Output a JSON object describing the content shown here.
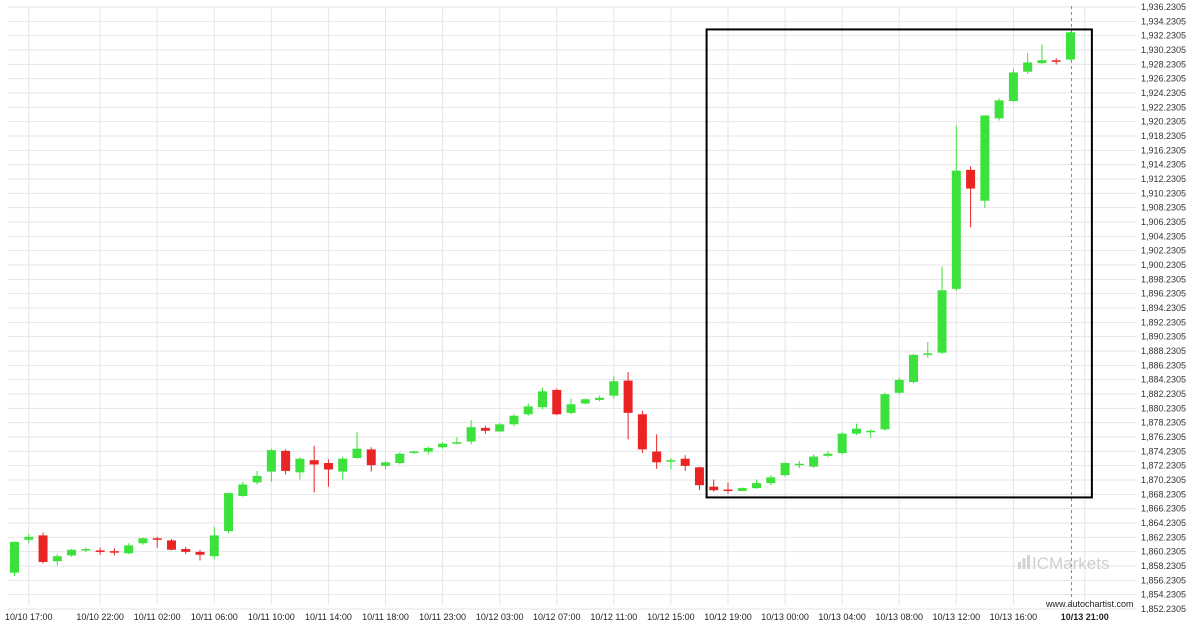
{
  "chart_data": {
    "type": "candlestick",
    "ylim": [
      1852.2305,
      1936.2305
    ],
    "y_ticks": [
      "1,852.2305",
      "1,854.2305",
      "1,856.2305",
      "1,858.2305",
      "1,860.2305",
      "1,862.2305",
      "1,864.2305",
      "1,866.2305",
      "1,868.2305",
      "1,870.2305",
      "1,872.2305",
      "1,874.2305",
      "1,876.2305",
      "1,878.2305",
      "1,880.2305",
      "1,882.2305",
      "1,884.2305",
      "1,886.2305",
      "1,888.2305",
      "1,890.2305",
      "1,892.2305",
      "1,894.2305",
      "1,896.2305",
      "1,898.2305",
      "1,900.2305",
      "1,902.2305",
      "1,904.2305",
      "1,906.2305",
      "1,908.2305",
      "1,910.2305",
      "1,912.2305",
      "1,914.2305",
      "1,916.2305",
      "1,918.2305",
      "1,920.2305",
      "1,922.2305",
      "1,924.2305",
      "1,926.2305",
      "1,928.2305",
      "1,930.2305",
      "1,932.2305",
      "1,934.2305",
      "1,936.2305"
    ],
    "x_ticks": [
      {
        "label": "10/10 17:00",
        "index": 1
      },
      {
        "label": "10/10 22:00",
        "index": 6
      },
      {
        "label": "10/11 02:00",
        "index": 10
      },
      {
        "label": "10/11 06:00",
        "index": 14
      },
      {
        "label": "10/11 10:00",
        "index": 18
      },
      {
        "label": "10/11 14:00",
        "index": 22
      },
      {
        "label": "10/11 18:00",
        "index": 26
      },
      {
        "label": "10/11 23:00",
        "index": 30
      },
      {
        "label": "10/12 03:00",
        "index": 34
      },
      {
        "label": "10/12 07:00",
        "index": 38
      },
      {
        "label": "10/12 11:00",
        "index": 42
      },
      {
        "label": "10/12 15:00",
        "index": 46
      },
      {
        "label": "10/12 19:00",
        "index": 50
      },
      {
        "label": "10/13 00:00",
        "index": 54
      },
      {
        "label": "10/13 04:00",
        "index": 58
      },
      {
        "label": "10/13 08:00",
        "index": 62
      },
      {
        "label": "10/13 12:00",
        "index": 66
      },
      {
        "label": "10/13 16:00",
        "index": 70
      },
      {
        "label": "10/13 21:00",
        "index": 75,
        "bold": true
      }
    ],
    "candles": [
      {
        "o": 1857.3,
        "h": 1861.6,
        "l": 1856.8,
        "c": 1861.6
      },
      {
        "o": 1861.9,
        "h": 1862.7,
        "l": 1861.4,
        "c": 1862.3
      },
      {
        "o": 1862.5,
        "h": 1862.9,
        "l": 1858.6,
        "c": 1858.8
      },
      {
        "o": 1858.9,
        "h": 1859.9,
        "l": 1858.3,
        "c": 1859.6
      },
      {
        "o": 1859.7,
        "h": 1860.6,
        "l": 1859.5,
        "c": 1860.5
      },
      {
        "o": 1860.5,
        "h": 1860.8,
        "l": 1860.2,
        "c": 1860.6
      },
      {
        "o": 1860.4,
        "h": 1860.8,
        "l": 1859.8,
        "c": 1860.3
      },
      {
        "o": 1860.3,
        "h": 1860.7,
        "l": 1859.7,
        "c": 1860.2
      },
      {
        "o": 1860.0,
        "h": 1861.4,
        "l": 1859.9,
        "c": 1861.1
      },
      {
        "o": 1861.4,
        "h": 1862.2,
        "l": 1861.2,
        "c": 1862.1
      },
      {
        "o": 1862.1,
        "h": 1862.3,
        "l": 1860.8,
        "c": 1861.9
      },
      {
        "o": 1861.8,
        "h": 1862.0,
        "l": 1860.4,
        "c": 1860.5
      },
      {
        "o": 1860.6,
        "h": 1860.9,
        "l": 1859.9,
        "c": 1860.2
      },
      {
        "o": 1860.2,
        "h": 1860.5,
        "l": 1859.0,
        "c": 1859.8
      },
      {
        "o": 1859.6,
        "h": 1863.7,
        "l": 1859.2,
        "c": 1862.5
      },
      {
        "o": 1863.1,
        "h": 1868.5,
        "l": 1862.8,
        "c": 1868.4
      },
      {
        "o": 1868.0,
        "h": 1870.0,
        "l": 1867.9,
        "c": 1869.6
      },
      {
        "o": 1869.9,
        "h": 1871.5,
        "l": 1869.6,
        "c": 1870.8
      },
      {
        "o": 1871.4,
        "h": 1874.6,
        "l": 1870.0,
        "c": 1874.4
      },
      {
        "o": 1874.3,
        "h": 1874.5,
        "l": 1871.0,
        "c": 1871.5
      },
      {
        "o": 1871.3,
        "h": 1873.4,
        "l": 1870.3,
        "c": 1873.2
      },
      {
        "o": 1873.0,
        "h": 1875.0,
        "l": 1868.5,
        "c": 1872.4
      },
      {
        "o": 1872.6,
        "h": 1873.1,
        "l": 1869.3,
        "c": 1871.7
      },
      {
        "o": 1871.4,
        "h": 1873.5,
        "l": 1870.3,
        "c": 1873.2
      },
      {
        "o": 1873.3,
        "h": 1876.9,
        "l": 1873.2,
        "c": 1874.6
      },
      {
        "o": 1874.5,
        "h": 1874.8,
        "l": 1871.4,
        "c": 1872.3
      },
      {
        "o": 1872.2,
        "h": 1872.9,
        "l": 1871.8,
        "c": 1872.7
      },
      {
        "o": 1872.6,
        "h": 1874.1,
        "l": 1872.4,
        "c": 1873.9
      },
      {
        "o": 1874.0,
        "h": 1874.3,
        "l": 1873.9,
        "c": 1874.2
      },
      {
        "o": 1874.2,
        "h": 1874.9,
        "l": 1873.8,
        "c": 1874.7
      },
      {
        "o": 1874.8,
        "h": 1875.5,
        "l": 1874.6,
        "c": 1875.3
      },
      {
        "o": 1875.3,
        "h": 1876.2,
        "l": 1875.2,
        "c": 1875.5
      },
      {
        "o": 1875.6,
        "h": 1878.6,
        "l": 1875.2,
        "c": 1877.6
      },
      {
        "o": 1877.5,
        "h": 1877.8,
        "l": 1876.7,
        "c": 1877.1
      },
      {
        "o": 1877.0,
        "h": 1878.2,
        "l": 1876.9,
        "c": 1878.0
      },
      {
        "o": 1878.0,
        "h": 1879.4,
        "l": 1877.7,
        "c": 1879.2
      },
      {
        "o": 1879.4,
        "h": 1880.9,
        "l": 1879.2,
        "c": 1880.5
      },
      {
        "o": 1880.4,
        "h": 1883.1,
        "l": 1880.1,
        "c": 1882.6
      },
      {
        "o": 1882.8,
        "h": 1883.0,
        "l": 1879.3,
        "c": 1879.4
      },
      {
        "o": 1879.6,
        "h": 1881.6,
        "l": 1879.4,
        "c": 1880.8
      },
      {
        "o": 1880.9,
        "h": 1881.6,
        "l": 1880.8,
        "c": 1881.5
      },
      {
        "o": 1881.4,
        "h": 1882.0,
        "l": 1881.2,
        "c": 1881.7
      },
      {
        "o": 1882.0,
        "h": 1884.7,
        "l": 1881.6,
        "c": 1884.0
      },
      {
        "o": 1884.1,
        "h": 1885.3,
        "l": 1875.9,
        "c": 1879.6
      },
      {
        "o": 1879.4,
        "h": 1879.9,
        "l": 1874.0,
        "c": 1874.5
      },
      {
        "o": 1874.2,
        "h": 1876.6,
        "l": 1871.8,
        "c": 1872.7
      },
      {
        "o": 1873.0,
        "h": 1873.3,
        "l": 1871.7,
        "c": 1873.0
      },
      {
        "o": 1873.2,
        "h": 1873.7,
        "l": 1871.5,
        "c": 1872.2
      },
      {
        "o": 1872.0,
        "h": 1872.1,
        "l": 1868.8,
        "c": 1869.5
      },
      {
        "o": 1869.3,
        "h": 1870.3,
        "l": 1868.6,
        "c": 1868.8
      },
      {
        "o": 1868.9,
        "h": 1869.9,
        "l": 1868.3,
        "c": 1868.8
      },
      {
        "o": 1868.7,
        "h": 1869.2,
        "l": 1868.7,
        "c": 1869.1
      },
      {
        "o": 1869.1,
        "h": 1870.3,
        "l": 1869.0,
        "c": 1869.8
      },
      {
        "o": 1869.8,
        "h": 1870.9,
        "l": 1869.5,
        "c": 1870.6
      },
      {
        "o": 1870.9,
        "h": 1872.7,
        "l": 1870.7,
        "c": 1872.6
      },
      {
        "o": 1872.3,
        "h": 1872.9,
        "l": 1871.9,
        "c": 1872.5
      },
      {
        "o": 1872.1,
        "h": 1873.8,
        "l": 1871.9,
        "c": 1873.5
      },
      {
        "o": 1873.6,
        "h": 1874.3,
        "l": 1873.4,
        "c": 1873.9
      },
      {
        "o": 1874.0,
        "h": 1876.9,
        "l": 1873.8,
        "c": 1876.7
      },
      {
        "o": 1876.7,
        "h": 1878.1,
        "l": 1876.5,
        "c": 1877.4
      },
      {
        "o": 1877.1,
        "h": 1877.3,
        "l": 1876.1,
        "c": 1877.1
      },
      {
        "o": 1877.3,
        "h": 1882.4,
        "l": 1877.1,
        "c": 1882.2
      },
      {
        "o": 1882.4,
        "h": 1884.5,
        "l": 1882.2,
        "c": 1884.2
      },
      {
        "o": 1883.9,
        "h": 1887.8,
        "l": 1883.7,
        "c": 1887.7
      },
      {
        "o": 1887.8,
        "h": 1889.5,
        "l": 1887.3,
        "c": 1887.9
      },
      {
        "o": 1888.0,
        "h": 1900.0,
        "l": 1887.8,
        "c": 1896.7
      },
      {
        "o": 1896.9,
        "h": 1919.7,
        "l": 1896.6,
        "c": 1913.4
      },
      {
        "o": 1913.5,
        "h": 1914.0,
        "l": 1905.5,
        "c": 1910.9
      },
      {
        "o": 1909.2,
        "h": 1920.9,
        "l": 1908.2,
        "c": 1921.1
      },
      {
        "o": 1920.7,
        "h": 1923.5,
        "l": 1920.4,
        "c": 1923.2
      },
      {
        "o": 1923.1,
        "h": 1927.6,
        "l": 1923.0,
        "c": 1927.1
      },
      {
        "o": 1927.2,
        "h": 1929.8,
        "l": 1926.9,
        "c": 1928.5
      },
      {
        "o": 1928.4,
        "h": 1931.0,
        "l": 1928.3,
        "c": 1928.8
      },
      {
        "o": 1928.8,
        "h": 1929.1,
        "l": 1928.2,
        "c": 1928.6
      },
      {
        "o": 1928.9,
        "h": 1932.8,
        "l": 1928.8,
        "c": 1932.7
      }
    ],
    "highlight_box": {
      "x_start": 48.5,
      "x_end": 75.5,
      "y_low": 1867.8,
      "y_high": 1933.1
    },
    "colors": {
      "up": "#3ce13c",
      "down": "#ea2424",
      "grid": "#e6e6e6",
      "box": "#000000"
    }
  },
  "branding": {
    "logo_text": "ICMarkets",
    "watermark": "www.autochartist.com"
  }
}
